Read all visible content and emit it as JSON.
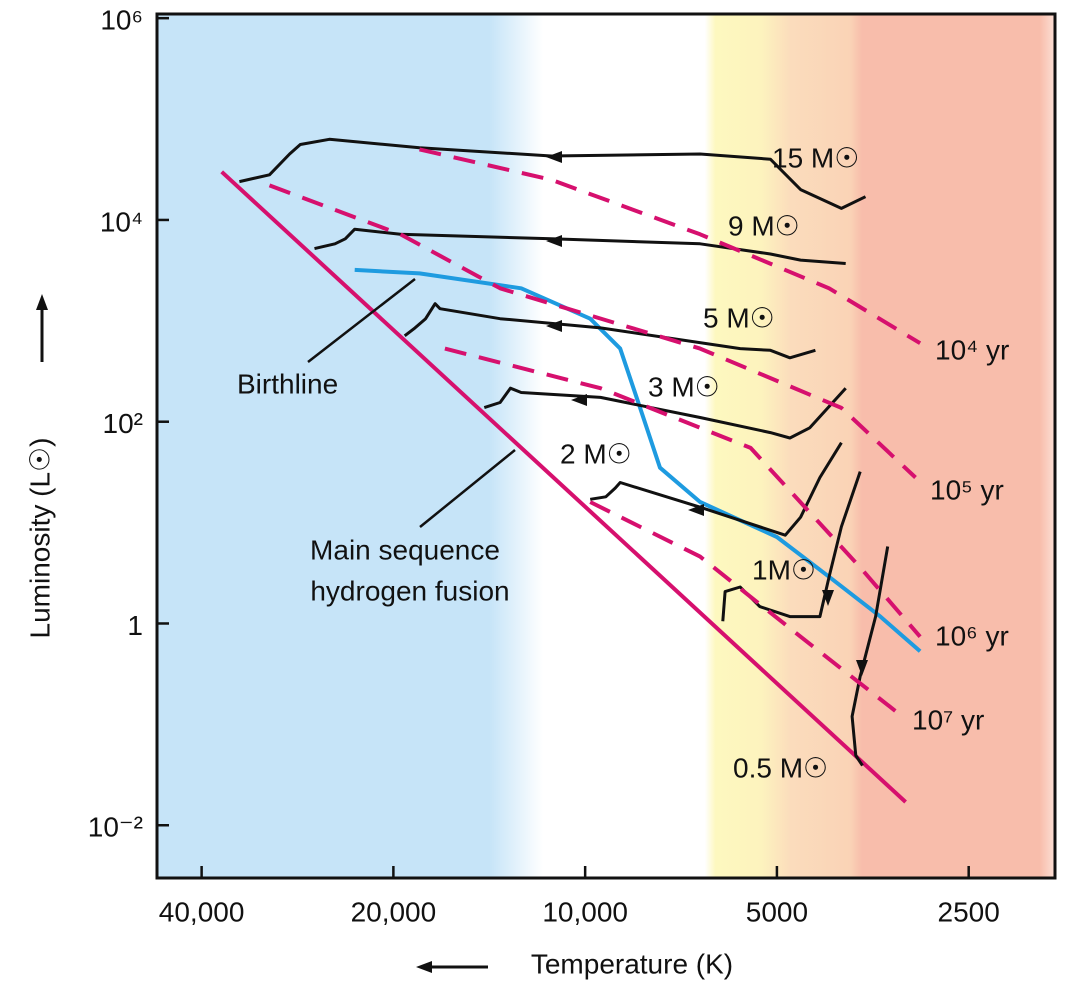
{
  "chart_data": {
    "type": "line",
    "xscale": "log",
    "yscale": "log",
    "xlim": [
      47000,
      1830
    ],
    "ylim": [
      0.003,
      1100000
    ],
    "xticks": [
      {
        "value": 40000,
        "label": "40,000"
      },
      {
        "value": 20000,
        "label": "20,000"
      },
      {
        "value": 10000,
        "label": "10,000"
      },
      5000,
      2500
    ],
    "yticks": [
      {
        "value": 1000000,
        "label": "10⁶"
      },
      {
        "value": 10000,
        "label": "10⁴"
      },
      {
        "value": 100,
        "label": "10²"
      },
      1,
      {
        "value": 0.01,
        "label": "10⁻²"
      }
    ],
    "x_label": "Temperature (K)",
    "y_label": "Luminosity (L☉)",
    "annotations": [
      "Birthline",
      "Main sequence",
      "hydrogen fusion"
    ],
    "series": [
      {
        "color": "#d6106e",
        "line_style": "solid",
        "x": [
          37200,
          3140
        ],
        "y": [
          30000,
          0.017
        ]
      },
      {
        "color": "#1e9be0",
        "line_style": "solid",
        "x": [
          23000,
          18200,
          12600,
          9820,
          8810,
          8200,
          7630,
          6600,
          5000,
          4140,
          3440,
          2980
        ],
        "y": [
          3200,
          2950,
          2100,
          1050,
          530,
          137,
          35,
          16,
          7.2,
          2.9,
          1.17,
          0.53
        ]
      },
      {
        "name": "15 M☉",
        "color": "#111111",
        "line_style": "solid",
        "x": [
          3630,
          3960,
          4590,
          5120,
          6600,
          11300,
          18200,
          25200,
          28000,
          29100,
          31300,
          34900
        ],
        "y": [
          17000,
          13000,
          20000,
          40000,
          45000,
          43000,
          52000,
          63000,
          56000,
          45000,
          28000,
          24000
        ]
      },
      {
        "name": "9 M☉",
        "color": "#111111",
        "line_style": "solid",
        "x": [
          3900,
          4590,
          5120,
          6600,
          11300,
          19500,
          23000,
          23800,
          24700,
          26600
        ],
        "y": [
          3700,
          4000,
          4600,
          5800,
          6500,
          7200,
          8100,
          6500,
          5800,
          5200
        ]
      },
      {
        "name": "5 M☉",
        "color": "#111111",
        "line_style": "solid",
        "x": [
          4350,
          4770,
          5120,
          5710,
          9460,
          13600,
          16900,
          17200,
          17800,
          18500,
          19200
        ],
        "y": [
          510,
          430,
          510,
          530,
          850,
          1050,
          1320,
          1480,
          1050,
          850,
          710
        ]
      },
      {
        "name": "3 M☉",
        "color": "#111111",
        "line_style": "solid",
        "x": [
          3900,
          4440,
          4770,
          5120,
          6600,
          9460,
          12600,
          13100,
          13600,
          14400
        ],
        "y": [
          215,
          87,
          69,
          78,
          110,
          174,
          195,
          215,
          155,
          138
        ]
      },
      {
        "name": "2 M☉",
        "color": "#111111",
        "line_style": "solid",
        "x": [
          3960,
          4280,
          4590,
          4850,
          6600,
          8810,
          8970,
          9280,
          9820
        ],
        "y": [
          62,
          28,
          11.3,
          7.5,
          14.2,
          25,
          22,
          18,
          17
        ]
      },
      {
        "name": "1M☉",
        "color": "#111111",
        "line_style": "solid",
        "x": [
          3700,
          3960,
          4140,
          4280,
          4770,
          5320,
          5710,
          6030,
          6080
        ],
        "y": [
          32,
          9.1,
          2.9,
          1.17,
          1.17,
          1.47,
          2.3,
          2.07,
          1.05
        ]
      },
      {
        "name": "0.5 M☉",
        "color": "#111111",
        "line_style": "solid",
        "x": [
          3350,
          3500,
          3700,
          3810,
          3760,
          3670
        ],
        "y": [
          5.8,
          1.17,
          0.3,
          0.12,
          0.049,
          0.039
        ]
      },
      {
        "name": "10⁴ yr",
        "color": "#d6106e",
        "line_style": "dashed",
        "x": [
          18200,
          11300,
          6600,
          4140,
          2980
        ],
        "y": [
          50000,
          25000,
          7200,
          2100,
          600
        ]
      },
      {
        "name": "10⁵ yr",
        "color": "#d6106e",
        "line_style": "dashed",
        "x": [
          31300,
          19500,
          13600,
          6600,
          3960,
          3030
        ],
        "y": [
          22000,
          7200,
          2100,
          530,
          137,
          28
        ]
      },
      {
        "name": "10⁶ yr",
        "color": "#d6106e",
        "line_style": "dashed",
        "x": [
          16600,
          9460,
          5500,
          3700,
          2980
        ],
        "y": [
          530,
          215,
          55,
          3.6,
          0.74
        ]
      },
      {
        "name": "10⁷ yr",
        "color": "#d6106e",
        "line_style": "dashed",
        "x": [
          9820,
          6600,
          4590,
          3260
        ],
        "y": [
          16,
          4.6,
          0.74,
          0.136
        ]
      }
    ]
  }
}
